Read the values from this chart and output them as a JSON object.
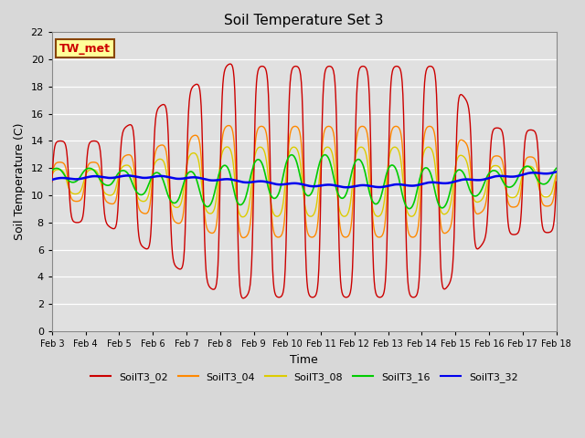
{
  "title": "Soil Temperature Set 3",
  "xlabel": "Time",
  "ylabel": "Soil Temperature (C)",
  "ylim": [
    0,
    22
  ],
  "yticks": [
    0,
    2,
    4,
    6,
    8,
    10,
    12,
    14,
    16,
    18,
    20,
    22
  ],
  "x_labels": [
    "Feb 3",
    "Feb 4",
    "Feb 5",
    "Feb 6",
    "Feb 7",
    "Feb 8",
    "Feb 9",
    "Feb 10",
    "Feb 11",
    "Feb 12",
    "Feb 13",
    "Feb 14",
    "Feb 15",
    "Feb 16",
    "Feb 17",
    "Feb 18"
  ],
  "legend_labels": [
    "SoilT3_02",
    "SoilT3_04",
    "SoilT3_08",
    "SoilT3_16",
    "SoilT3_32"
  ],
  "colors": {
    "T02": "#cc0000",
    "T04": "#ff8800",
    "T08": "#ddcc00",
    "T16": "#00cc00",
    "T32": "#0000ee"
  },
  "tw_met_box_color": "#ffff99",
  "tw_met_border_color": "#884400",
  "tw_met_text_color": "#cc0000",
  "plot_bg_color": "#e0e0e0",
  "fig_bg_color": "#d8d8d8",
  "grid_color": "#ffffff",
  "annotation_text": "TW_met"
}
